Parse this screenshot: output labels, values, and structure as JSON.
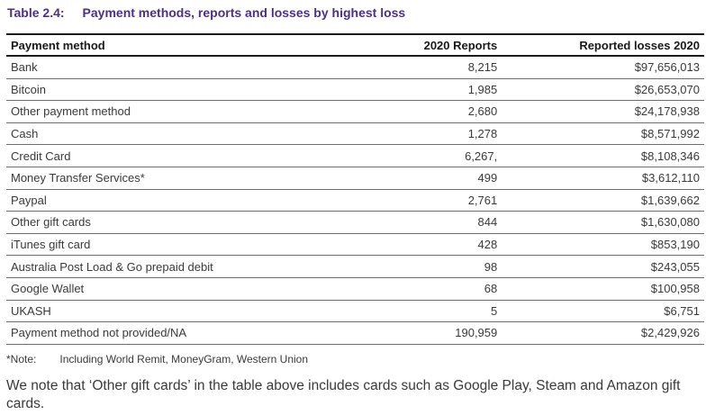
{
  "table_title": {
    "label": "Table 2.4:",
    "text": "Payment methods, reports and losses by highest loss"
  },
  "headers": [
    "Payment method",
    "2020 Reports",
    "Reported losses 2020"
  ],
  "rows": [
    [
      "Bank",
      "8,215",
      "$97,656,013"
    ],
    [
      "Bitcoin",
      "1,985",
      "$26,653,070"
    ],
    [
      "Other payment method",
      "2,680",
      "$24,178,938"
    ],
    [
      "Cash",
      "1,278",
      "$8,571,992"
    ],
    [
      "Credit Card",
      "6,267,",
      "$8,108,346"
    ],
    [
      "Money Transfer Services*",
      "499",
      "$3,612,110"
    ],
    [
      "Paypal",
      "2,761",
      "$1,639,662"
    ],
    [
      "Other gift cards",
      "844",
      "$1,630,080"
    ],
    [
      "iTunes gift card",
      "428",
      "$853,190"
    ],
    [
      "Australia Post Load & Go prepaid debit",
      "98",
      "$243,055"
    ],
    [
      "Google Wallet",
      "68",
      "$100,958"
    ],
    [
      "UKASH",
      "5",
      "$6,751"
    ],
    [
      "Payment method not provided/NA",
      "190,959",
      "$2,429,926"
    ]
  ],
  "note": {
    "marker": "*Note:",
    "text": "Including World Remit, MoneyGram, Western Union"
  },
  "footer_text": "We note that ‘Other gift cards’ in the table above includes cards such as Google Play, Steam and Amazon gift cards.",
  "colors": {
    "title": "#4a2f8f",
    "rule": "#1a1a1a"
  }
}
